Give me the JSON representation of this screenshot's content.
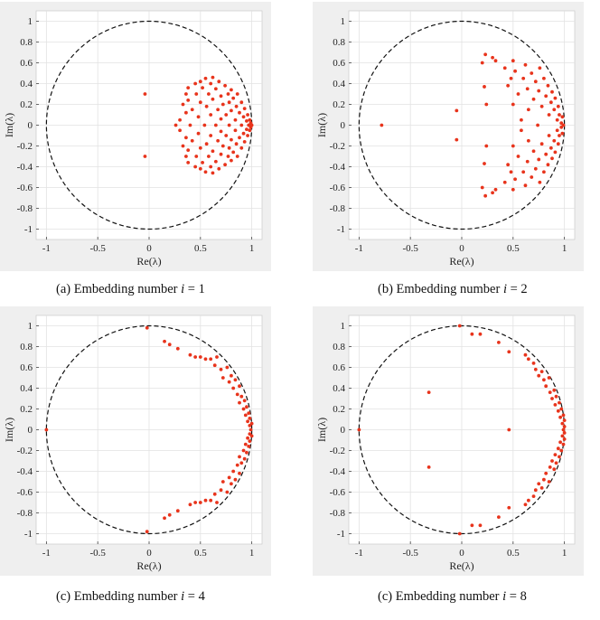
{
  "figure": {
    "captions": [
      {
        "prefix": "(a) Embedding number ",
        "var": "i",
        "eq": " = 1"
      },
      {
        "prefix": "(b) Embedding number ",
        "var": "i",
        "eq": " = 2"
      },
      {
        "prefix": "(c) Embedding number ",
        "var": "i",
        "eq": " = 4"
      },
      {
        "prefix": "(c) Embedding number ",
        "var": "i",
        "eq": " = 8"
      }
    ]
  },
  "colors": {
    "panel_bg": "#efefef",
    "axes_bg": "#ffffff",
    "grid": "#e2e2e2",
    "marker": "#e8341c",
    "circle": "#111111"
  },
  "chart_data": [
    {
      "type": "scatter",
      "xlabel": "Re(λ)",
      "ylabel": "Im(λ)",
      "xlim": [
        -1.1,
        1.1
      ],
      "ylim": [
        -1.1,
        1.1
      ],
      "xticks": [
        "-1",
        "-0.5",
        "0",
        "0.5",
        "1"
      ],
      "yticks": [
        "1",
        "0.8",
        "0.6",
        "0.4",
        "0.2",
        "0",
        "-0.2",
        "-0.4",
        "-0.6",
        "-0.8",
        "-1"
      ],
      "grid": true,
      "unit_circle": "dashed",
      "points": [
        [
          -0.04,
          0.3
        ],
        [
          -0.04,
          -0.3
        ],
        [
          0.26,
          0
        ],
        [
          0.3,
          0.05
        ],
        [
          0.3,
          -0.05
        ],
        [
          0.33,
          0.2
        ],
        [
          0.33,
          -0.2
        ],
        [
          0.36,
          0.3
        ],
        [
          0.36,
          -0.3
        ],
        [
          0.36,
          0.12
        ],
        [
          0.36,
          -0.12
        ],
        [
          0.38,
          0.36
        ],
        [
          0.38,
          -0.36
        ],
        [
          0.38,
          0.24
        ],
        [
          0.38,
          -0.24
        ],
        [
          0.4,
          0
        ],
        [
          0.42,
          0.15
        ],
        [
          0.42,
          -0.15
        ],
        [
          0.45,
          0.4
        ],
        [
          0.45,
          -0.4
        ],
        [
          0.46,
          0.3
        ],
        [
          0.46,
          -0.3
        ],
        [
          0.48,
          0.08
        ],
        [
          0.48,
          -0.08
        ],
        [
          0.5,
          0.42
        ],
        [
          0.5,
          -0.42
        ],
        [
          0.5,
          0.22
        ],
        [
          0.5,
          -0.22
        ],
        [
          0.52,
          0.36
        ],
        [
          0.52,
          -0.36
        ],
        [
          0.54,
          0
        ],
        [
          0.55,
          0.45
        ],
        [
          0.55,
          -0.45
        ],
        [
          0.56,
          0.18
        ],
        [
          0.56,
          -0.18
        ],
        [
          0.58,
          0.3
        ],
        [
          0.58,
          -0.3
        ],
        [
          0.6,
          0.1
        ],
        [
          0.6,
          -0.1
        ],
        [
          0.6,
          0.4
        ],
        [
          0.6,
          -0.4
        ],
        [
          0.62,
          0.46
        ],
        [
          0.62,
          -0.46
        ],
        [
          0.62,
          0.25
        ],
        [
          0.62,
          -0.25
        ],
        [
          0.65,
          0
        ],
        [
          0.65,
          0.35
        ],
        [
          0.65,
          -0.35
        ],
        [
          0.67,
          0.15
        ],
        [
          0.67,
          -0.15
        ],
        [
          0.68,
          0.42
        ],
        [
          0.68,
          -0.42
        ],
        [
          0.7,
          0.28
        ],
        [
          0.7,
          -0.28
        ],
        [
          0.7,
          0.06
        ],
        [
          0.7,
          -0.06
        ],
        [
          0.72,
          0.2
        ],
        [
          0.72,
          -0.2
        ],
        [
          0.74,
          0.38
        ],
        [
          0.74,
          -0.38
        ],
        [
          0.75,
          0.1
        ],
        [
          0.75,
          -0.1
        ],
        [
          0.77,
          0.3
        ],
        [
          0.77,
          -0.3
        ],
        [
          0.78,
          0
        ],
        [
          0.78,
          0.22
        ],
        [
          0.78,
          -0.22
        ],
        [
          0.8,
          0.34
        ],
        [
          0.8,
          -0.34
        ],
        [
          0.8,
          0.14
        ],
        [
          0.8,
          -0.14
        ],
        [
          0.82,
          0.26
        ],
        [
          0.82,
          -0.26
        ],
        [
          0.84,
          0.05
        ],
        [
          0.84,
          -0.05
        ],
        [
          0.85,
          0.18
        ],
        [
          0.85,
          -0.18
        ],
        [
          0.86,
          0.3
        ],
        [
          0.86,
          -0.3
        ],
        [
          0.88,
          0.12
        ],
        [
          0.88,
          -0.12
        ],
        [
          0.9,
          0.22
        ],
        [
          0.9,
          -0.22
        ],
        [
          0.9,
          0
        ],
        [
          0.92,
          0.08
        ],
        [
          0.92,
          -0.08
        ],
        [
          0.93,
          0.16
        ],
        [
          0.93,
          -0.16
        ],
        [
          0.95,
          0.04
        ],
        [
          0.95,
          -0.04
        ],
        [
          0.96,
          0.1
        ],
        [
          0.96,
          -0.1
        ],
        [
          0.97,
          0
        ],
        [
          0.98,
          0.05
        ],
        [
          0.98,
          -0.05
        ],
        [
          0.99,
          0.02
        ],
        [
          0.99,
          -0.02
        ],
        [
          1.0,
          0
        ]
      ]
    },
    {
      "type": "scatter",
      "xlabel": "Re(λ)",
      "ylabel": "Im(λ)",
      "xlim": [
        -1.1,
        1.1
      ],
      "ylim": [
        -1.1,
        1.1
      ],
      "xticks": [
        "-1",
        "-0.5",
        "0",
        "0.5",
        "1"
      ],
      "yticks": [
        "1",
        "0.8",
        "0.6",
        "0.4",
        "0.2",
        "0",
        "-0.2",
        "-0.4",
        "-0.6",
        "-0.8",
        "-1"
      ],
      "grid": true,
      "unit_circle": "dashed",
      "points": [
        [
          -0.78,
          0
        ],
        [
          -0.05,
          0.14
        ],
        [
          -0.05,
          -0.14
        ],
        [
          0.2,
          0.6
        ],
        [
          0.2,
          -0.6
        ],
        [
          0.23,
          0.68
        ],
        [
          0.23,
          -0.68
        ],
        [
          0.22,
          0.37
        ],
        [
          0.22,
          -0.37
        ],
        [
          0.24,
          0.2
        ],
        [
          0.24,
          -0.2
        ],
        [
          0.3,
          0.65
        ],
        [
          0.3,
          -0.65
        ],
        [
          0.33,
          0.62
        ],
        [
          0.33,
          -0.62
        ],
        [
          0.42,
          0.55
        ],
        [
          0.42,
          -0.55
        ],
        [
          0.45,
          0.38
        ],
        [
          0.45,
          -0.38
        ],
        [
          0.48,
          0.45
        ],
        [
          0.48,
          -0.45
        ],
        [
          0.5,
          0.62
        ],
        [
          0.5,
          -0.62
        ],
        [
          0.5,
          0.2
        ],
        [
          0.5,
          -0.2
        ],
        [
          0.52,
          0.52
        ],
        [
          0.52,
          -0.52
        ],
        [
          0.55,
          0.3
        ],
        [
          0.55,
          -0.3
        ],
        [
          0.58,
          0.05
        ],
        [
          0.58,
          -0.05
        ],
        [
          0.6,
          0.45
        ],
        [
          0.6,
          -0.45
        ],
        [
          0.62,
          0.58
        ],
        [
          0.62,
          -0.58
        ],
        [
          0.64,
          0.35
        ],
        [
          0.64,
          -0.35
        ],
        [
          0.65,
          0.15
        ],
        [
          0.65,
          -0.15
        ],
        [
          0.68,
          0.5
        ],
        [
          0.68,
          -0.5
        ],
        [
          0.7,
          0.25
        ],
        [
          0.7,
          -0.25
        ],
        [
          0.72,
          0.42
        ],
        [
          0.72,
          -0.42
        ],
        [
          0.74,
          0
        ],
        [
          0.75,
          0.33
        ],
        [
          0.75,
          -0.33
        ],
        [
          0.76,
          0.55
        ],
        [
          0.76,
          -0.55
        ],
        [
          0.78,
          0.18
        ],
        [
          0.78,
          -0.18
        ],
        [
          0.8,
          0.45
        ],
        [
          0.8,
          -0.45
        ],
        [
          0.82,
          0.28
        ],
        [
          0.82,
          -0.28
        ],
        [
          0.84,
          0.38
        ],
        [
          0.84,
          -0.38
        ],
        [
          0.85,
          0.1
        ],
        [
          0.85,
          -0.1
        ],
        [
          0.87,
          0.22
        ],
        [
          0.87,
          -0.22
        ],
        [
          0.88,
          0.32
        ],
        [
          0.88,
          -0.32
        ],
        [
          0.9,
          0.15
        ],
        [
          0.9,
          -0.15
        ],
        [
          0.91,
          0.26
        ],
        [
          0.91,
          -0.26
        ],
        [
          0.93,
          0.05
        ],
        [
          0.93,
          -0.05
        ],
        [
          0.94,
          0.18
        ],
        [
          0.94,
          -0.18
        ],
        [
          0.95,
          0.1
        ],
        [
          0.95,
          -0.1
        ],
        [
          0.97,
          0.02
        ],
        [
          0.97,
          -0.02
        ],
        [
          0.98,
          0.08
        ],
        [
          0.98,
          -0.08
        ],
        [
          0.99,
          0
        ]
      ]
    },
    {
      "type": "scatter",
      "xlabel": "Re(λ)",
      "ylabel": "Im(λ)",
      "xlim": [
        -1.1,
        1.1
      ],
      "ylim": [
        -1.1,
        1.1
      ],
      "xticks": [
        "-1",
        "-0.5",
        "0",
        "0.5",
        "1"
      ],
      "yticks": [
        "1",
        "0.8",
        "0.6",
        "0.4",
        "0.2",
        "0",
        "-0.2",
        "-0.4",
        "-0.6",
        "-0.8",
        "-1"
      ],
      "grid": true,
      "unit_circle": "dashed",
      "points": [
        [
          -1.0,
          0
        ],
        [
          -0.02,
          0.98
        ],
        [
          -0.02,
          -0.98
        ],
        [
          0.15,
          0.85
        ],
        [
          0.15,
          -0.85
        ],
        [
          0.2,
          0.82
        ],
        [
          0.2,
          -0.82
        ],
        [
          0.28,
          0.78
        ],
        [
          0.28,
          -0.78
        ],
        [
          0.4,
          0.72
        ],
        [
          0.4,
          -0.72
        ],
        [
          0.45,
          0.7
        ],
        [
          0.45,
          -0.7
        ],
        [
          0.5,
          0.7
        ],
        [
          0.5,
          -0.7
        ],
        [
          0.55,
          0.68
        ],
        [
          0.55,
          -0.68
        ],
        [
          0.6,
          0.68
        ],
        [
          0.6,
          -0.68
        ],
        [
          0.66,
          0.7
        ],
        [
          0.66,
          -0.7
        ],
        [
          0.64,
          0.62
        ],
        [
          0.64,
          -0.62
        ],
        [
          0.7,
          0.58
        ],
        [
          0.7,
          -0.58
        ],
        [
          0.72,
          0.5
        ],
        [
          0.72,
          -0.5
        ],
        [
          0.76,
          0.6
        ],
        [
          0.76,
          -0.6
        ],
        [
          0.78,
          0.46
        ],
        [
          0.78,
          -0.46
        ],
        [
          0.8,
          0.52
        ],
        [
          0.8,
          -0.52
        ],
        [
          0.82,
          0.4
        ],
        [
          0.82,
          -0.4
        ],
        [
          0.84,
          0.48
        ],
        [
          0.84,
          -0.48
        ],
        [
          0.86,
          0.34
        ],
        [
          0.86,
          -0.34
        ],
        [
          0.88,
          0.42
        ],
        [
          0.88,
          -0.42
        ],
        [
          0.88,
          0.26
        ],
        [
          0.88,
          -0.26
        ],
        [
          0.9,
          0.32
        ],
        [
          0.9,
          -0.32
        ],
        [
          0.92,
          0.2
        ],
        [
          0.92,
          -0.2
        ],
        [
          0.93,
          0.28
        ],
        [
          0.93,
          -0.28
        ],
        [
          0.94,
          0.14
        ],
        [
          0.94,
          -0.14
        ],
        [
          0.95,
          0.22
        ],
        [
          0.95,
          -0.22
        ],
        [
          0.96,
          0.08
        ],
        [
          0.96,
          -0.08
        ],
        [
          0.97,
          0.16
        ],
        [
          0.97,
          -0.16
        ],
        [
          0.98,
          0.04
        ],
        [
          0.98,
          -0.04
        ],
        [
          0.98,
          0.11
        ],
        [
          0.98,
          -0.11
        ],
        [
          0.99,
          0
        ],
        [
          1.0,
          0.06
        ],
        [
          1.0,
          -0.06
        ]
      ]
    },
    {
      "type": "scatter",
      "xlabel": "Re(λ)",
      "ylabel": "Im(λ)",
      "xlim": [
        -1.1,
        1.1
      ],
      "ylim": [
        -1.1,
        1.1
      ],
      "xticks": [
        "-1",
        "-0.5",
        "0",
        "0.5",
        "1"
      ],
      "yticks": [
        "1",
        "0.8",
        "0.6",
        "0.4",
        "0.2",
        "0",
        "-0.2",
        "-0.4",
        "-0.6",
        "-0.8",
        "-1"
      ],
      "grid": true,
      "unit_circle": "dashed",
      "points": [
        [
          -1.0,
          0
        ],
        [
          -0.32,
          0.36
        ],
        [
          -0.32,
          -0.36
        ],
        [
          0.46,
          0
        ],
        [
          -0.02,
          1.0
        ],
        [
          -0.02,
          -1.0
        ],
        [
          0.1,
          0.92
        ],
        [
          0.1,
          -0.92
        ],
        [
          0.18,
          0.92
        ],
        [
          0.18,
          -0.92
        ],
        [
          0.36,
          0.84
        ],
        [
          0.36,
          -0.84
        ],
        [
          0.46,
          0.75
        ],
        [
          0.46,
          -0.75
        ],
        [
          0.62,
          0.72
        ],
        [
          0.62,
          -0.72
        ],
        [
          0.65,
          0.68
        ],
        [
          0.65,
          -0.68
        ],
        [
          0.7,
          0.64
        ],
        [
          0.7,
          -0.64
        ],
        [
          0.72,
          0.58
        ],
        [
          0.72,
          -0.58
        ],
        [
          0.75,
          0.52
        ],
        [
          0.75,
          -0.52
        ],
        [
          0.78,
          0.56
        ],
        [
          0.78,
          -0.56
        ],
        [
          0.8,
          0.48
        ],
        [
          0.8,
          -0.48
        ],
        [
          0.82,
          0.42
        ],
        [
          0.82,
          -0.42
        ],
        [
          0.85,
          0.5
        ],
        [
          0.85,
          -0.5
        ],
        [
          0.86,
          0.36
        ],
        [
          0.86,
          -0.36
        ],
        [
          0.88,
          0.3
        ],
        [
          0.88,
          -0.3
        ],
        [
          0.9,
          0.38
        ],
        [
          0.9,
          -0.38
        ],
        [
          0.91,
          0.24
        ],
        [
          0.91,
          -0.24
        ],
        [
          0.92,
          0.32
        ],
        [
          0.92,
          -0.32
        ],
        [
          0.94,
          0.18
        ],
        [
          0.94,
          -0.18
        ],
        [
          0.95,
          0.26
        ],
        [
          0.95,
          -0.26
        ],
        [
          0.96,
          0.12
        ],
        [
          0.96,
          -0.12
        ],
        [
          0.97,
          0.2
        ],
        [
          0.97,
          -0.2
        ],
        [
          0.98,
          0.06
        ],
        [
          0.98,
          -0.06
        ],
        [
          0.99,
          0.14
        ],
        [
          0.99,
          -0.14
        ],
        [
          0.99,
          0
        ],
        [
          1.0,
          0.09
        ],
        [
          1.0,
          -0.09
        ],
        [
          1.0,
          0.03
        ],
        [
          1.0,
          -0.03
        ]
      ]
    }
  ]
}
